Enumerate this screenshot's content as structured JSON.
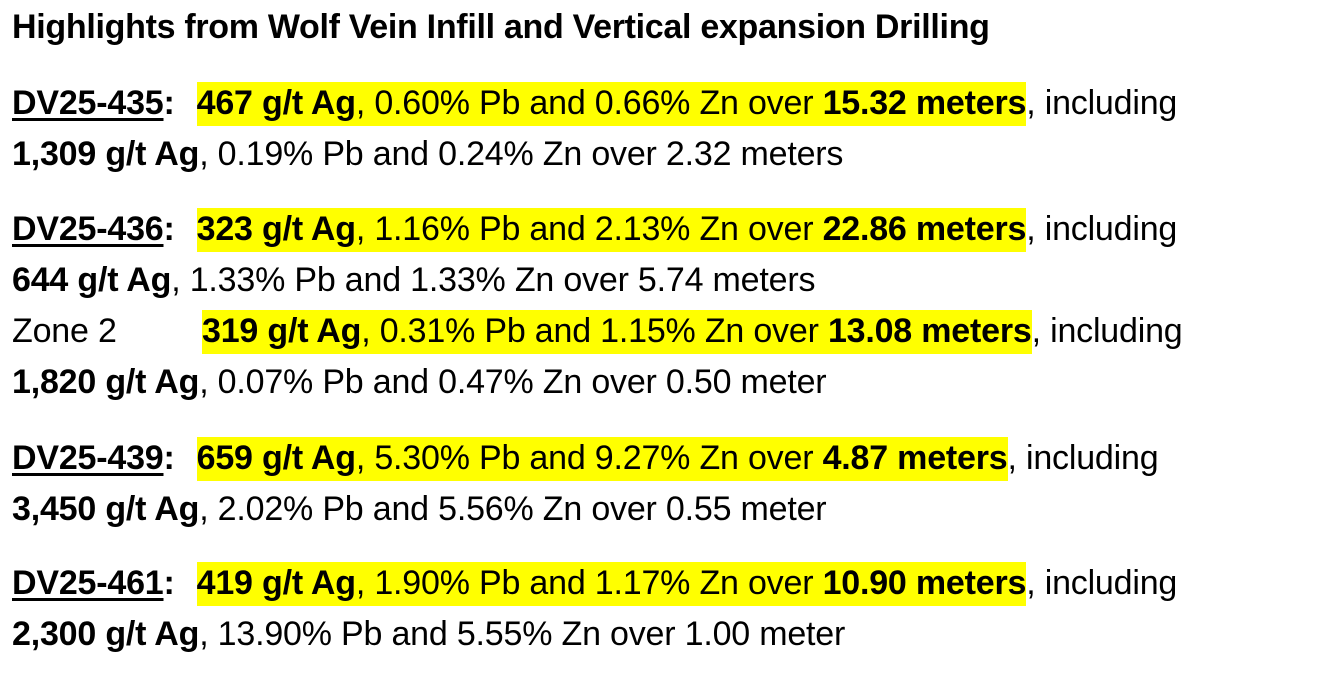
{
  "title": "Highlights from Wolf Vein Infill and Vertical expansion Drilling",
  "holes": [
    {
      "id": "DV25-435",
      "colon": ":",
      "main": {
        "ag": "467 g/t Ag",
        "mid": ", 0.60% Pb and 0.66% Zn over ",
        "len": "15.32 meters"
      },
      "incl": ", including",
      "sub": {
        "ag": "1,309 g/t Ag",
        "rest": ", 0.19% Pb and 0.24% Zn over 2.32 meters"
      }
    },
    {
      "id": "DV25-436",
      "colon": ":",
      "main": {
        "ag": "323 g/t Ag",
        "mid": ", 1.16% Pb and 2.13% Zn over ",
        "len": "22.86 meters"
      },
      "incl": ", including",
      "sub": {
        "ag": "644 g/t Ag",
        "rest": ", 1.33% Pb and 1.33% Zn over 5.74 meters"
      },
      "zone2": {
        "label": "Zone 2",
        "main": {
          "ag": "319 g/t Ag",
          "mid": ", 0.31% Pb and 1.15% Zn over ",
          "len": "13.08 meters"
        },
        "incl": ", including",
        "sub": {
          "ag": "1,820 g/t Ag",
          "rest": ", 0.07% Pb and 0.47% Zn over 0.50 meter"
        }
      }
    },
    {
      "id": "DV25-439",
      "colon": ":",
      "main": {
        "ag": "659 g/t Ag",
        "mid": ", 5.30% Pb and 9.27% Zn over ",
        "len": "4.87 meters"
      },
      "incl": ", including",
      "sub": {
        "ag": "3,450 g/t Ag",
        "rest": ", 2.02% Pb and 5.56% Zn over 0.55 meter"
      }
    },
    {
      "id": "DV25-461",
      "colon": ":",
      "main": {
        "ag": "419 g/t Ag",
        "mid": ", 1.90% Pb and 1.17% Zn over ",
        "len": "10.90 meters"
      },
      "incl": ", including",
      "sub": {
        "ag": "2,300 g/t Ag",
        "rest": ", 13.90% Pb and 5.55% Zn over 1.00 meter"
      }
    }
  ],
  "colors": {
    "highlight": "#ffff00",
    "text": "#000000",
    "background": "#ffffff"
  }
}
